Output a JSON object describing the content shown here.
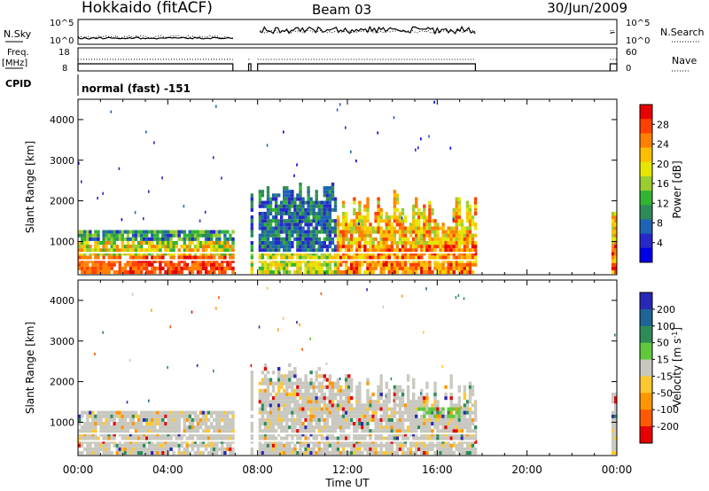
{
  "header": {
    "title": "Hokkaido (fitACF)",
    "beam": "Beam 03",
    "date": "30/Jun/2009"
  },
  "status_panels": {
    "nsky_label": "N.Sky",
    "nsky_ticks": [
      "10^5",
      "10^0"
    ],
    "nsearch_label": "N.Search",
    "freq_label": "Freq.",
    "freq_unit": "[MHz]",
    "freq_ticks": [
      "18",
      "8"
    ],
    "nave_label": "Nave",
    "nave_ticks": [
      "60",
      "0"
    ],
    "cpid_label": "CPID",
    "cpid_value": "normal (fast) -151"
  },
  "chart_data": [
    {
      "type": "heatmap",
      "panel": "power",
      "ylabel": "Slant Range [km]",
      "xlabel": "Time UT",
      "x_ticks": [
        "00:00",
        "04:00",
        "08:00",
        "12:00",
        "16:00",
        "20:00",
        "00:00"
      ],
      "x_range_hours": [
        0,
        24
      ],
      "y_ticks": [
        1000,
        2000,
        3000,
        4000
      ],
      "ylim": [
        180,
        4500
      ],
      "colorbar": {
        "label": "Power [dB]",
        "ticks": [
          "28",
          "24",
          "20",
          "16",
          "12",
          "8",
          "4"
        ],
        "colors": [
          "#e60000",
          "#ff4000",
          "#ff8000",
          "#ffbf00",
          "#e6e600",
          "#9acd32",
          "#32b432",
          "#2e8b57",
          "#1e64b4",
          "#2828c8",
          "#0000e6"
        ]
      },
      "data_gaps_hours": [
        [
          6.9,
          7.6
        ],
        [
          7.7,
          8.0
        ],
        [
          17.7,
          23.7
        ]
      ],
      "summary": [
        {
          "time_range": "00:00-06:50",
          "range_km": [
            200,
            1250
          ],
          "power_db": "4-28",
          "note": "strong red band below 600 km near 02:00-06:00"
        },
        {
          "time_range": "08:00-12:00",
          "range_km": [
            200,
            2500
          ],
          "power_db": "4-16",
          "note": "blue/green scatter, patch near 1800-2300 km"
        },
        {
          "time_range": "12:00-17:40",
          "range_km": [
            200,
            2400
          ],
          "power_db": "16-28",
          "note": "orange/red echoes, feature at 2300 km near 13:30"
        },
        {
          "time_range": "23:40-24:00",
          "range_km": [
            200,
            1700
          ],
          "power_db": "16-28",
          "note": "echoes resume"
        }
      ]
    },
    {
      "type": "heatmap",
      "panel": "velocity",
      "ylabel": "Slant Range [km]",
      "xlabel": "Time UT",
      "x_ticks": [
        "00:00",
        "04:00",
        "08:00",
        "12:00",
        "16:00",
        "20:00",
        "00:00"
      ],
      "x_range_hours": [
        0,
        24
      ],
      "y_ticks": [
        1000,
        2000,
        3000,
        4000
      ],
      "ylim": [
        180,
        4500
      ],
      "colorbar": {
        "label": "Velocity [m s",
        "label_sup": "-1",
        "label_end": "]",
        "ticks": [
          "200",
          "100",
          "50",
          "15",
          "-15",
          "-50",
          "-100",
          "-200"
        ],
        "colors": [
          "#2828b4",
          "#1e6496",
          "#2e8b57",
          "#5fc83c",
          "#c8c8c0",
          "#ffc832",
          "#ff9600",
          "#ff5a00",
          "#e60000"
        ]
      },
      "data_gaps_hours": [
        [
          6.9,
          7.6
        ],
        [
          7.7,
          8.0
        ],
        [
          17.7,
          23.7
        ]
      ],
      "summary": [
        {
          "time_range": "00:00-17:40",
          "range_km": [
            200,
            1300
          ],
          "velocity_ms": "-15 to 15",
          "note": "mostly grey (low velocity) ground scatter"
        },
        {
          "time_range": "15:00-17:00",
          "range_km": [
            1100,
            1300
          ],
          "velocity_ms": "15-50",
          "note": "green positive velocities"
        },
        {
          "time_range": "13:00-14:00",
          "range_km": [
            2200,
            2300
          ],
          "velocity_ms": "15-50",
          "note": "green patch"
        }
      ]
    }
  ]
}
